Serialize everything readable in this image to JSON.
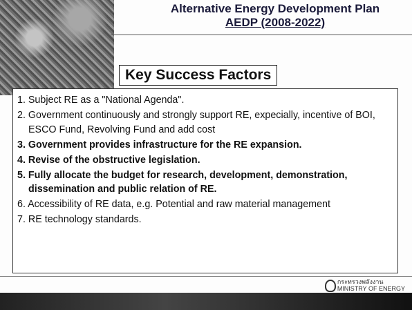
{
  "header": {
    "title": [
      "Alternative Energy Development Plan",
      "AEDP (2008-2022)"
    ],
    "subtitle": "Key Success Factors"
  },
  "items": [
    "1. Subject RE as a \"National Agenda\".",
    "2. Government continuously and strongly support RE, expecially, incentive of BOI, ESCO Fund, Revolving Fund and add cost",
    "3. Government provides infrastructure for the RE expansion.",
    "4. Revise of the obstructive legislation.",
    "5. Fully allocate the budget for research, development, demonstration, dissemination and public relation of RE.",
    "6. Accessibility of RE data, e.g. Potential and raw material management",
    "7. RE technology standards."
  ],
  "footer": {
    "logo": [
      "กระทรวงพลังงาน",
      "MINISTRY OF ENERGY"
    ]
  }
}
